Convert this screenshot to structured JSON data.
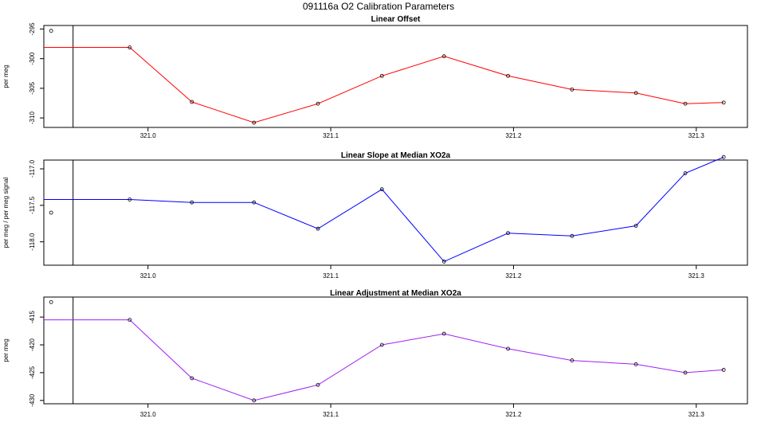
{
  "title": "091116a   O2 Calibration Parameters",
  "chart_data": [
    {
      "type": "line",
      "title": "Linear Offset",
      "ylabel": "per meg",
      "color": "#ff0000",
      "xlim": [
        320.943,
        321.328
      ],
      "ylim": [
        -311.6,
        -294.4
      ],
      "xticks": [
        321.0,
        321.1,
        321.2,
        321.3
      ],
      "xtick_labels": [
        "321.0",
        "321.1",
        "321.2",
        "321.3"
      ],
      "yticks": [
        -295,
        -300,
        -305,
        -310
      ],
      "ytick_labels": [
        "-295",
        "-300",
        "-305",
        "-310"
      ],
      "vline_x": 320.959,
      "start_x": 320.943,
      "outlier": {
        "x": 320.947,
        "y": -295.3
      },
      "x": [
        320.99,
        321.024,
        321.058,
        321.093,
        321.128,
        321.162,
        321.197,
        321.232,
        321.267,
        321.294,
        321.315
      ],
      "values": [
        -298.1,
        -307.3,
        -310.8,
        -307.6,
        -302.9,
        -299.6,
        -302.9,
        -305.2,
        -305.8,
        -307.6,
        -307.4
      ],
      "grid": false,
      "legend": "none"
    },
    {
      "type": "line",
      "title": "Linear Slope at Median XO2a",
      "ylabel": "per meg / per meg signal",
      "color": "#0000ff",
      "xlim": [
        320.943,
        321.328
      ],
      "ylim": [
        -118.32,
        -116.88
      ],
      "xticks": [
        321.0,
        321.1,
        321.2,
        321.3
      ],
      "xtick_labels": [
        "321.0",
        "321.1",
        "321.2",
        "321.3"
      ],
      "yticks": [
        -117.0,
        -117.5,
        -118.0
      ],
      "ytick_labels": [
        "-117.0",
        "-117.5",
        "-118.0"
      ],
      "vline_x": 320.959,
      "start_x": 320.943,
      "outlier": {
        "x": 320.947,
        "y": -117.6
      },
      "x": [
        320.99,
        321.024,
        321.058,
        321.093,
        321.128,
        321.162,
        321.197,
        321.232,
        321.267,
        321.294,
        321.315
      ],
      "values": [
        -117.42,
        -117.46,
        -117.46,
        -117.82,
        -117.28,
        -118.27,
        -117.88,
        -117.92,
        -117.78,
        -117.06,
        -116.84
      ],
      "grid": false,
      "legend": "none"
    },
    {
      "type": "line",
      "title": "Linear Adjustment at Median XO2a",
      "ylabel": "per meg",
      "color": "#a020f0",
      "xlim": [
        320.943,
        321.328
      ],
      "ylim": [
        -430.6,
        -411.4
      ],
      "xticks": [
        321.0,
        321.1,
        321.2,
        321.3
      ],
      "xtick_labels": [
        "321.0",
        "321.1",
        "321.2",
        "321.3"
      ],
      "yticks": [
        -415,
        -420,
        -425,
        -430
      ],
      "ytick_labels": [
        "-415",
        "-420",
        "-425",
        "-430"
      ],
      "vline_x": 320.959,
      "start_x": 320.943,
      "outlier": {
        "x": 320.947,
        "y": -412.3
      },
      "x": [
        320.99,
        321.024,
        321.058,
        321.093,
        321.128,
        321.162,
        321.197,
        321.232,
        321.267,
        321.294,
        321.315
      ],
      "values": [
        -415.5,
        -426.0,
        -430.0,
        -427.2,
        -420.0,
        -418.0,
        -420.7,
        -422.8,
        -423.5,
        -425.0,
        -424.5
      ],
      "grid": false,
      "legend": "none"
    }
  ]
}
